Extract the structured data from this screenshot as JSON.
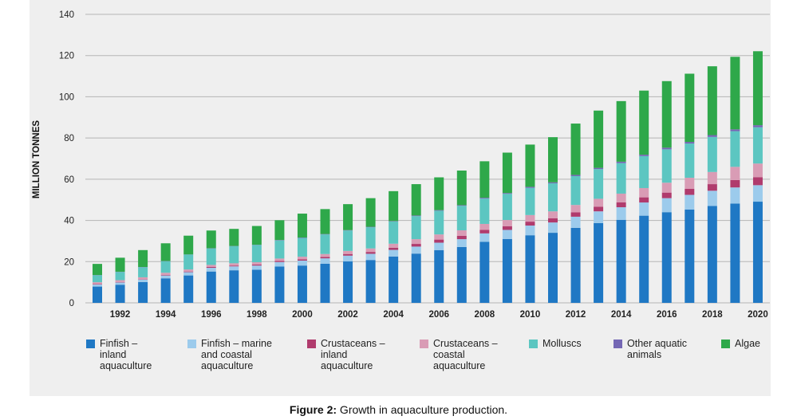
{
  "caption": {
    "prefix": "Figure 2:",
    "text": " Growth in aquaculture production."
  },
  "chart_data": {
    "type": "bar",
    "stacked": true,
    "ylabel": "MILLION TONNES",
    "ylim": [
      0,
      140
    ],
    "yticks": [
      0,
      20,
      40,
      60,
      80,
      100,
      120,
      140
    ],
    "grid": true,
    "legend_position": "bottom",
    "categories": [
      "1991",
      "1992",
      "1993",
      "1994",
      "1995",
      "1996",
      "1997",
      "1998",
      "1999",
      "2000",
      "2001",
      "2002",
      "2003",
      "2004",
      "2005",
      "2006",
      "2007",
      "2008",
      "2009",
      "2010",
      "2011",
      "2012",
      "2013",
      "2014",
      "2015",
      "2016",
      "2017",
      "2018",
      "2019",
      "2020"
    ],
    "xtick_labels": [
      "1992",
      "1994",
      "1996",
      "1998",
      "2000",
      "2002",
      "2004",
      "2006",
      "2008",
      "2010",
      "2012",
      "2014",
      "2016",
      "2018",
      "2020"
    ],
    "series": [
      {
        "name": "Finfish – inland aquaculture",
        "label_lines": "Finfish –\ninland\naquaculture",
        "color": "#1f78c4",
        "values": [
          7.9,
          8.8,
          10.1,
          11.9,
          13.3,
          15.2,
          15.8,
          16.1,
          17.6,
          18.1,
          19.0,
          20.1,
          20.8,
          22.5,
          23.9,
          25.6,
          27.1,
          29.6,
          31.0,
          32.8,
          34.0,
          36.4,
          38.7,
          40.3,
          42.3,
          44.0,
          45.3,
          47.0,
          48.2,
          49.1
        ]
      },
      {
        "name": "Finfish – marine and coastal aquaculture",
        "label_lines": "Finfish – marine\nand coastal\naquaculture",
        "color": "#9ccbec",
        "values": [
          1.0,
          1.1,
          1.2,
          1.4,
          1.6,
          1.8,
          1.9,
          2.0,
          2.2,
          2.4,
          2.6,
          2.8,
          3.0,
          3.2,
          3.4,
          3.6,
          3.8,
          4.1,
          4.4,
          4.7,
          5.0,
          5.4,
          5.7,
          6.1,
          6.4,
          6.8,
          7.1,
          7.4,
          7.8,
          8.0
        ]
      },
      {
        "name": "Crustaceans – inland aquaculture",
        "label_lines": "Crustaceans –\ninland\naquaculture",
        "color": "#b03b6d",
        "values": [
          0.2,
          0.2,
          0.2,
          0.3,
          0.3,
          0.4,
          0.4,
          0.5,
          0.5,
          0.6,
          0.7,
          0.8,
          0.9,
          1.0,
          1.3,
          1.5,
          1.6,
          1.7,
          1.8,
          1.9,
          2.0,
          2.1,
          2.2,
          2.4,
          2.5,
          2.7,
          2.9,
          3.2,
          3.6,
          3.9
        ]
      },
      {
        "name": "Crustaceans – coastal aquaculture",
        "label_lines": "Crustaceans –\ncoastal\naquaculture",
        "color": "#d99cb5",
        "values": [
          0.9,
          0.9,
          0.9,
          1.0,
          1.0,
          1.0,
          1.1,
          1.1,
          1.2,
          1.3,
          1.4,
          1.5,
          1.7,
          2.0,
          2.3,
          2.5,
          2.7,
          2.9,
          3.0,
          3.2,
          3.4,
          3.6,
          3.9,
          4.2,
          4.5,
          4.8,
          5.4,
          5.9,
          6.4,
          6.6
        ]
      },
      {
        "name": "Molluscs",
        "label_lines": "Molluscs",
        "color": "#5cc6c1",
        "values": [
          3.4,
          4.0,
          4.9,
          5.6,
          7.2,
          8.0,
          8.3,
          8.4,
          8.8,
          9.1,
          9.5,
          9.9,
          10.3,
          10.8,
          11.2,
          11.5,
          11.9,
          12.3,
          12.7,
          13.2,
          13.6,
          14.0,
          14.4,
          14.8,
          15.5,
          16.2,
          16.6,
          17.0,
          17.3,
          17.6
        ]
      },
      {
        "name": "Other aquatic animals",
        "label_lines": "Other aquatic\nanimals",
        "color": "#7467b4",
        "values": [
          0.1,
          0.1,
          0.1,
          0.1,
          0.1,
          0.1,
          0.1,
          0.1,
          0.2,
          0.2,
          0.2,
          0.2,
          0.2,
          0.2,
          0.3,
          0.3,
          0.3,
          0.4,
          0.4,
          0.5,
          0.5,
          0.6,
          0.6,
          0.7,
          0.7,
          0.8,
          0.8,
          0.9,
          0.9,
          1.0
        ]
      },
      {
        "name": "Algae",
        "label_lines": "Algae",
        "color": "#2ea84a",
        "values": [
          5.4,
          6.8,
          8.2,
          8.6,
          9.1,
          8.6,
          8.3,
          9.1,
          9.6,
          11.6,
          12.1,
          12.6,
          13.9,
          14.5,
          15.2,
          15.9,
          16.8,
          17.7,
          19.6,
          20.5,
          21.9,
          24.9,
          27.8,
          29.4,
          31.1,
          32.3,
          33.1,
          33.4,
          35.2,
          35.9
        ]
      }
    ]
  }
}
